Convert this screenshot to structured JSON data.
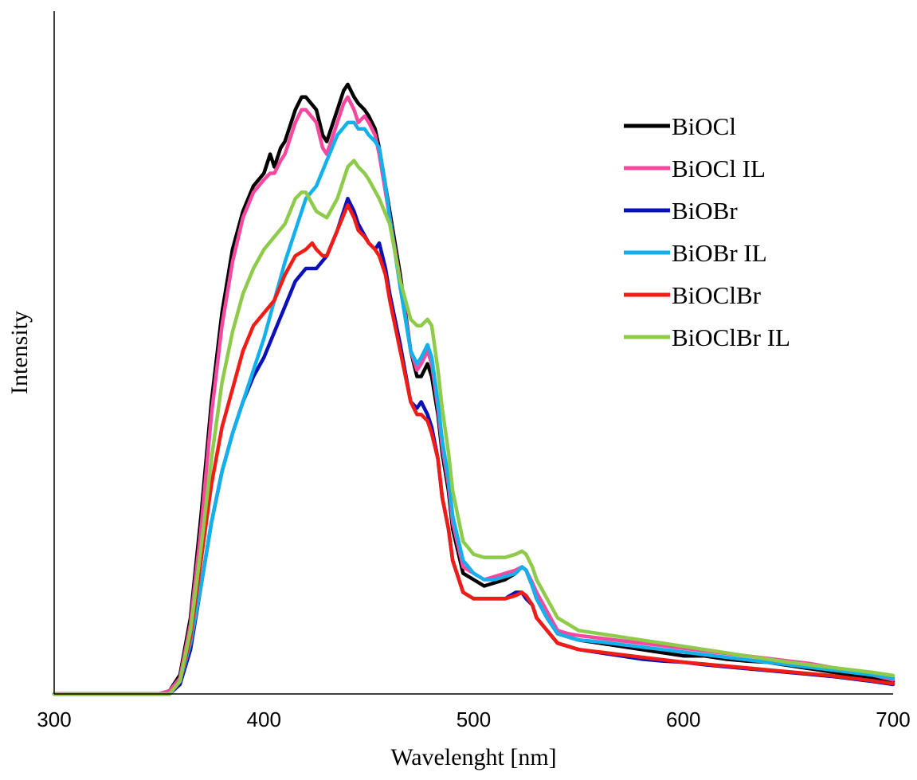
{
  "chart_data": {
    "type": "line",
    "title": "",
    "xlabel": "Wavelenght [nm]",
    "ylabel": "Intensity",
    "xlim": [
      300,
      700
    ],
    "ylim": [
      0,
      100
    ],
    "xticks": [
      "300",
      "400",
      "500",
      "600",
      "700"
    ],
    "y_tick_labels_shown": false,
    "grid": false,
    "legend_position": "top-right",
    "series": [
      {
        "name": "BiOCl",
        "color": "#000000",
        "x": [
          300,
          350,
          355,
          360,
          365,
          370,
          375,
          380,
          385,
          390,
          395,
          400,
          403,
          405,
          408,
          410,
          415,
          418,
          420,
          425,
          428,
          430,
          435,
          438,
          440,
          443,
          445,
          448,
          450,
          453,
          455,
          458,
          460,
          465,
          470,
          473,
          475,
          478,
          480,
          483,
          485,
          488,
          490,
          495,
          500,
          505,
          510,
          515,
          520,
          523,
          525,
          528,
          530,
          535,
          540,
          545,
          550,
          560,
          570,
          580,
          590,
          600,
          610,
          620,
          630,
          640,
          650,
          660,
          670,
          680,
          690,
          700
        ],
        "y": [
          0,
          0,
          0.5,
          3,
          12,
          28,
          46,
          60,
          70,
          76,
          80,
          82,
          85,
          83,
          86,
          87,
          92,
          94,
          94,
          92,
          88,
          87,
          92,
          95,
          96,
          94,
          93,
          92,
          91,
          89,
          86,
          80,
          76,
          66,
          54,
          50,
          50,
          52,
          50,
          44,
          38,
          32,
          26,
          19,
          18,
          17,
          17.5,
          18,
          19,
          20,
          19.5,
          17,
          15,
          12,
          9.5,
          9,
          8.5,
          8,
          7.5,
          7,
          6.5,
          6,
          6,
          5.5,
          5.2,
          5,
          4.5,
          4,
          3.5,
          3,
          2.5,
          2
        ]
      },
      {
        "name": "BiOCl IL",
        "color": "#f5489e",
        "x": [
          300,
          350,
          355,
          360,
          365,
          370,
          375,
          380,
          385,
          390,
          395,
          400,
          403,
          405,
          408,
          410,
          415,
          418,
          420,
          425,
          428,
          430,
          435,
          438,
          440,
          443,
          445,
          448,
          450,
          453,
          455,
          458,
          460,
          465,
          470,
          473,
          475,
          478,
          480,
          483,
          485,
          488,
          490,
          495,
          500,
          505,
          510,
          515,
          520,
          523,
          525,
          528,
          530,
          535,
          540,
          545,
          550,
          560,
          570,
          580,
          590,
          600,
          610,
          620,
          630,
          640,
          650,
          660,
          670,
          680,
          690,
          700
        ],
        "y": [
          0,
          0,
          0.5,
          2.5,
          11,
          26,
          44,
          58,
          68,
          75,
          79,
          81,
          82,
          82,
          84,
          85,
          90,
          92,
          92,
          90,
          86,
          85,
          90,
          93,
          94,
          92,
          90,
          91,
          90,
          88,
          85,
          79,
          75,
          65,
          54,
          51,
          52,
          54,
          52,
          45,
          39,
          33,
          27,
          20,
          19,
          18,
          18.5,
          19,
          19.5,
          20,
          19.5,
          17.5,
          16,
          13,
          10,
          9.5,
          9.2,
          8.8,
          8.4,
          8,
          7.6,
          7.2,
          6.8,
          6.4,
          6,
          5.6,
          5.2,
          4.8,
          4.2,
          3.6,
          3,
          2.2
        ]
      },
      {
        "name": "BiOBr",
        "color": "#0a11b9",
        "x": [
          300,
          350,
          355,
          360,
          365,
          370,
          375,
          380,
          385,
          390,
          395,
          400,
          405,
          410,
          415,
          420,
          425,
          430,
          435,
          440,
          443,
          445,
          450,
          453,
          455,
          458,
          460,
          465,
          470,
          473,
          475,
          478,
          480,
          483,
          485,
          488,
          490,
          495,
          500,
          505,
          510,
          515,
          520,
          523,
          525,
          528,
          530,
          535,
          540,
          545,
          550,
          560,
          570,
          580,
          590,
          600,
          610,
          620,
          630,
          640,
          650,
          660,
          670,
          680,
          690,
          700
        ],
        "y": [
          0,
          0,
          0,
          1.5,
          7,
          17,
          27,
          35,
          41,
          46,
          50,
          53,
          57,
          61,
          65,
          67,
          67,
          69,
          73,
          78,
          76,
          74,
          71,
          70,
          71,
          67,
          63,
          55,
          46,
          45,
          46,
          44,
          42,
          37,
          31,
          26,
          21,
          16,
          15,
          15,
          15,
          15,
          16,
          16,
          15,
          14,
          12,
          10,
          8,
          7.5,
          7,
          6.5,
          6,
          5.5,
          5.2,
          5,
          4.6,
          4.3,
          4,
          3.7,
          3.4,
          3.1,
          2.8,
          2.4,
          2,
          1.5
        ]
      },
      {
        "name": "BiOBr IL",
        "color": "#14b0ec",
        "x": [
          300,
          350,
          355,
          360,
          365,
          370,
          375,
          380,
          385,
          390,
          395,
          400,
          405,
          410,
          415,
          420,
          425,
          430,
          435,
          440,
          443,
          445,
          448,
          450,
          453,
          455,
          458,
          460,
          465,
          470,
          473,
          475,
          478,
          480,
          483,
          485,
          488,
          490,
          495,
          500,
          505,
          510,
          515,
          520,
          523,
          525,
          528,
          530,
          535,
          540,
          545,
          550,
          560,
          570,
          580,
          590,
          600,
          610,
          620,
          630,
          640,
          650,
          660,
          670,
          680,
          690,
          700
        ],
        "y": [
          0,
          0,
          0,
          2,
          8,
          17,
          27,
          35,
          41,
          46,
          51,
          56,
          62,
          68,
          73,
          78,
          80,
          84,
          88,
          90,
          90,
          89,
          89,
          88,
          87,
          86,
          80,
          75,
          64,
          54,
          52,
          53,
          55,
          53,
          46,
          40,
          34,
          28,
          21,
          19,
          18,
          18,
          18.5,
          19,
          20,
          19.5,
          17,
          15,
          12,
          9.5,
          9,
          8.5,
          8.2,
          7.8,
          7.4,
          7,
          6.6,
          6.2,
          5.8,
          5.4,
          5,
          4.6,
          4.2,
          3.8,
          3.4,
          3,
          2.5
        ]
      },
      {
        "name": "BiOClBr",
        "color": "#f01d16",
        "x": [
          300,
          350,
          355,
          360,
          365,
          370,
          375,
          380,
          385,
          390,
          395,
          400,
          405,
          410,
          415,
          420,
          423,
          425,
          428,
          430,
          435,
          440,
          443,
          445,
          448,
          450,
          453,
          455,
          458,
          460,
          465,
          470,
          473,
          475,
          478,
          480,
          483,
          485,
          488,
          490,
          495,
          500,
          505,
          510,
          515,
          520,
          523,
          525,
          528,
          530,
          535,
          540,
          545,
          550,
          560,
          570,
          580,
          590,
          600,
          610,
          620,
          630,
          640,
          650,
          660,
          670,
          680,
          690,
          700
        ],
        "y": [
          0,
          0,
          0,
          2,
          9,
          21,
          33,
          42,
          48,
          54,
          58,
          60,
          62,
          66,
          69,
          70,
          71,
          70,
          69,
          69,
          73,
          77,
          75,
          73,
          72,
          71,
          70,
          69,
          66,
          62,
          54,
          46,
          44,
          44,
          43,
          41,
          37,
          31,
          26,
          21,
          16,
          15,
          15,
          15,
          15,
          15.5,
          16,
          15.5,
          14,
          12,
          10,
          8,
          7.5,
          7,
          6.6,
          6.2,
          5.8,
          5.4,
          5,
          4.7,
          4.4,
          4.1,
          3.8,
          3.5,
          3.2,
          2.9,
          2.5,
          2.1,
          1.6
        ]
      },
      {
        "name": "BiOClBr IL",
        "color": "#8ecb4a",
        "x": [
          300,
          350,
          355,
          360,
          365,
          370,
          375,
          380,
          385,
          390,
          395,
          400,
          405,
          410,
          415,
          418,
          420,
          425,
          430,
          435,
          440,
          443,
          445,
          448,
          450,
          455,
          460,
          465,
          470,
          473,
          475,
          478,
          480,
          483,
          485,
          488,
          490,
          495,
          500,
          505,
          510,
          515,
          520,
          523,
          525,
          528,
          530,
          535,
          540,
          545,
          550,
          560,
          570,
          580,
          590,
          600,
          610,
          620,
          630,
          640,
          650,
          660,
          670,
          680,
          690,
          700
        ],
        "y": [
          0,
          0,
          0,
          2,
          10,
          23,
          37,
          49,
          57,
          63,
          67,
          70,
          72,
          74,
          78,
          79,
          79,
          76,
          75,
          78,
          83,
          84,
          83,
          82,
          81,
          78,
          74,
          65,
          59,
          58,
          58,
          59,
          58,
          51,
          45,
          38,
          32,
          24,
          22,
          21.5,
          21.5,
          21.5,
          22,
          22.5,
          22,
          20,
          18,
          15,
          12,
          11,
          10,
          9.5,
          9,
          8.5,
          8,
          7.5,
          7,
          6.5,
          6,
          5.5,
          5,
          4.6,
          4.2,
          3.8,
          3.4,
          2.9
        ]
      }
    ]
  }
}
